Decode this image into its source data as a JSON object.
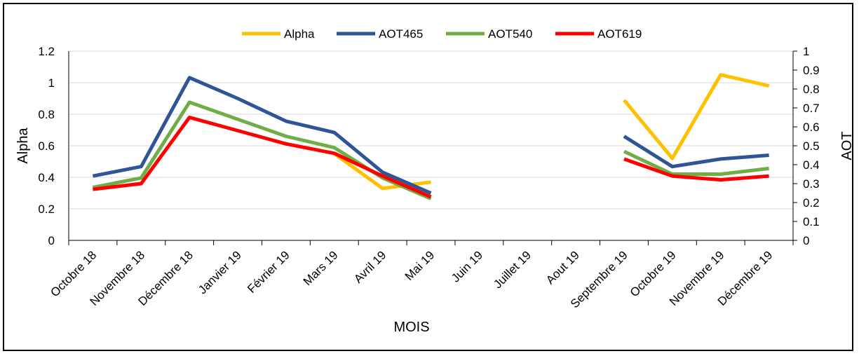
{
  "chart_data": {
    "type": "line",
    "title": "",
    "xlabel": "MOIS",
    "ylabel": "Alpha",
    "y2label": "AOT",
    "categories": [
      "Octobre 18",
      "Novembre 18",
      "Décembre 18",
      "Janvier 19",
      "Février 19",
      "Mars 19",
      "Avril 19",
      "Mai 19",
      "Juin 19",
      "Juillet 19",
      "Aout 19",
      "Septembre 19",
      "Octobre 19",
      "Novembre 19",
      "Décembre 19"
    ],
    "ylim": [
      0,
      1.2
    ],
    "yticks": [
      "0",
      "0.2",
      "0.4",
      "0.6",
      "0.8",
      "1",
      "1.2"
    ],
    "y2lim": [
      0,
      1
    ],
    "y2ticks": [
      "0",
      "0.1",
      "0.2",
      "0.3",
      "0.4",
      "0.5",
      "0.6",
      "0.7",
      "0.8",
      "0.9",
      "1"
    ],
    "grid": true,
    "legend_position": "top-center",
    "series": [
      {
        "name": "Alpha",
        "axis": "left",
        "color": "#FFC000",
        "values": [
          null,
          null,
          null,
          null,
          null,
          0.55,
          0.33,
          0.37,
          null,
          null,
          null,
          0.89,
          0.52,
          1.05,
          0.98
        ]
      },
      {
        "name": "AOT465",
        "axis": "right",
        "color": "#2F5597",
        "values": [
          0.34,
          0.39,
          0.86,
          0.75,
          0.63,
          0.57,
          0.36,
          0.25,
          null,
          null,
          null,
          0.55,
          0.39,
          0.43,
          0.45
        ]
      },
      {
        "name": "AOT540",
        "axis": "right",
        "color": "#70AD47",
        "values": [
          0.28,
          0.33,
          0.73,
          0.64,
          0.55,
          0.49,
          0.33,
          0.22,
          null,
          null,
          null,
          0.47,
          0.35,
          0.35,
          0.38
        ]
      },
      {
        "name": "AOT619",
        "axis": "right",
        "color": "#FF0000",
        "values": [
          0.27,
          0.3,
          0.65,
          0.58,
          0.51,
          0.46,
          0.34,
          0.23,
          null,
          null,
          null,
          0.43,
          0.34,
          0.32,
          0.34
        ]
      }
    ]
  }
}
